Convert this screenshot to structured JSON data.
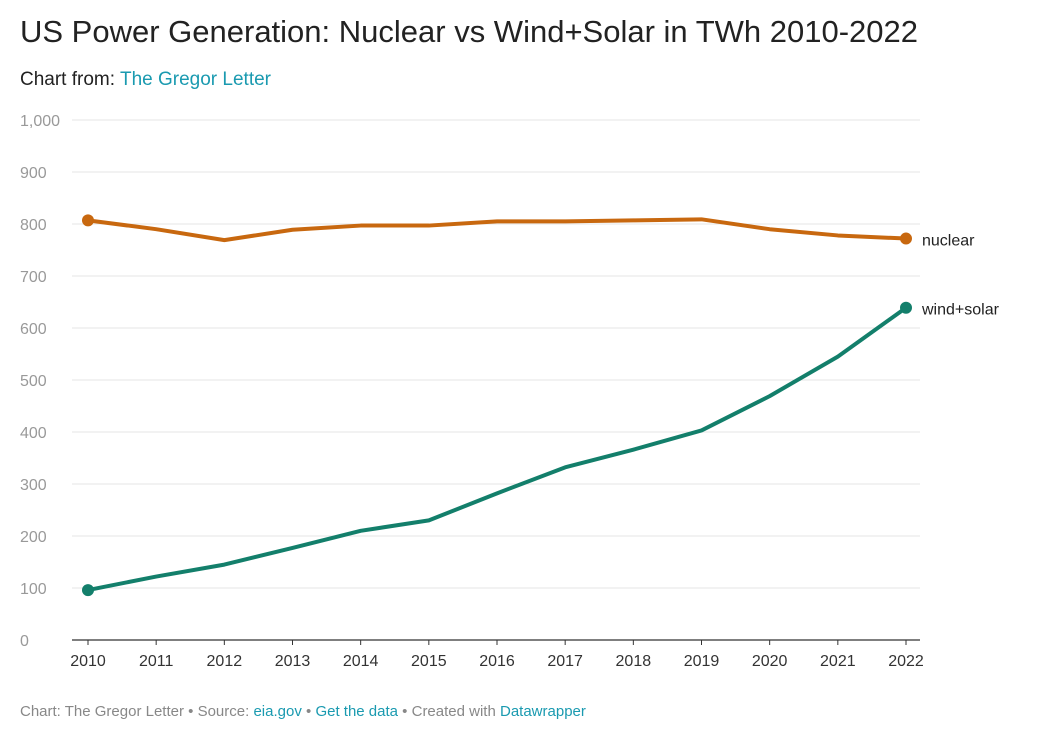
{
  "title": "US Power Generation: Nuclear vs Wind+Solar in TWh 2010-2022",
  "subtitle": {
    "prefix": "Chart from:",
    "link": "The Gregor Letter"
  },
  "footer": {
    "chart_prefix": "Chart: The Gregor Letter",
    "sep1": "•",
    "source_prefix": "Source:",
    "source_link": "eia.gov",
    "sep2": "•",
    "data_link": "Get the data",
    "sep3": "•",
    "created_prefix": "Created with",
    "created_link": "Datawrapper"
  },
  "colors": {
    "nuclear": "#c8680f",
    "wind_solar": "#137f6b",
    "link": "#1a9ab0",
    "grid": "#e6e6e6"
  },
  "chart_data": {
    "type": "line",
    "x": [
      2010,
      2011,
      2012,
      2013,
      2014,
      2015,
      2016,
      2017,
      2018,
      2019,
      2020,
      2021,
      2022
    ],
    "x_tick_labels": [
      "2010",
      "2011",
      "2012",
      "2013",
      "2014",
      "2015",
      "2016",
      "2017",
      "2018",
      "2019",
      "2020",
      "2021",
      "2022"
    ],
    "ylim": [
      0,
      1000
    ],
    "y_ticks": [
      0,
      100,
      200,
      300,
      400,
      500,
      600,
      700,
      800,
      900,
      1000
    ],
    "y_tick_labels": [
      "0",
      "100",
      "200",
      "300",
      "400",
      "500",
      "600",
      "700",
      "800",
      "900",
      "1,000"
    ],
    "grid": true,
    "series": [
      {
        "name": "nuclear",
        "color": "#c8680f",
        "values": [
          807,
          790,
          769,
          789,
          797,
          797,
          805,
          805,
          807,
          809,
          790,
          778,
          772
        ]
      },
      {
        "name": "wind+solar",
        "color": "#137f6b",
        "values": [
          96,
          122,
          145,
          177,
          210,
          230,
          282,
          332,
          366,
          403,
          469,
          545,
          639
        ]
      }
    ]
  }
}
